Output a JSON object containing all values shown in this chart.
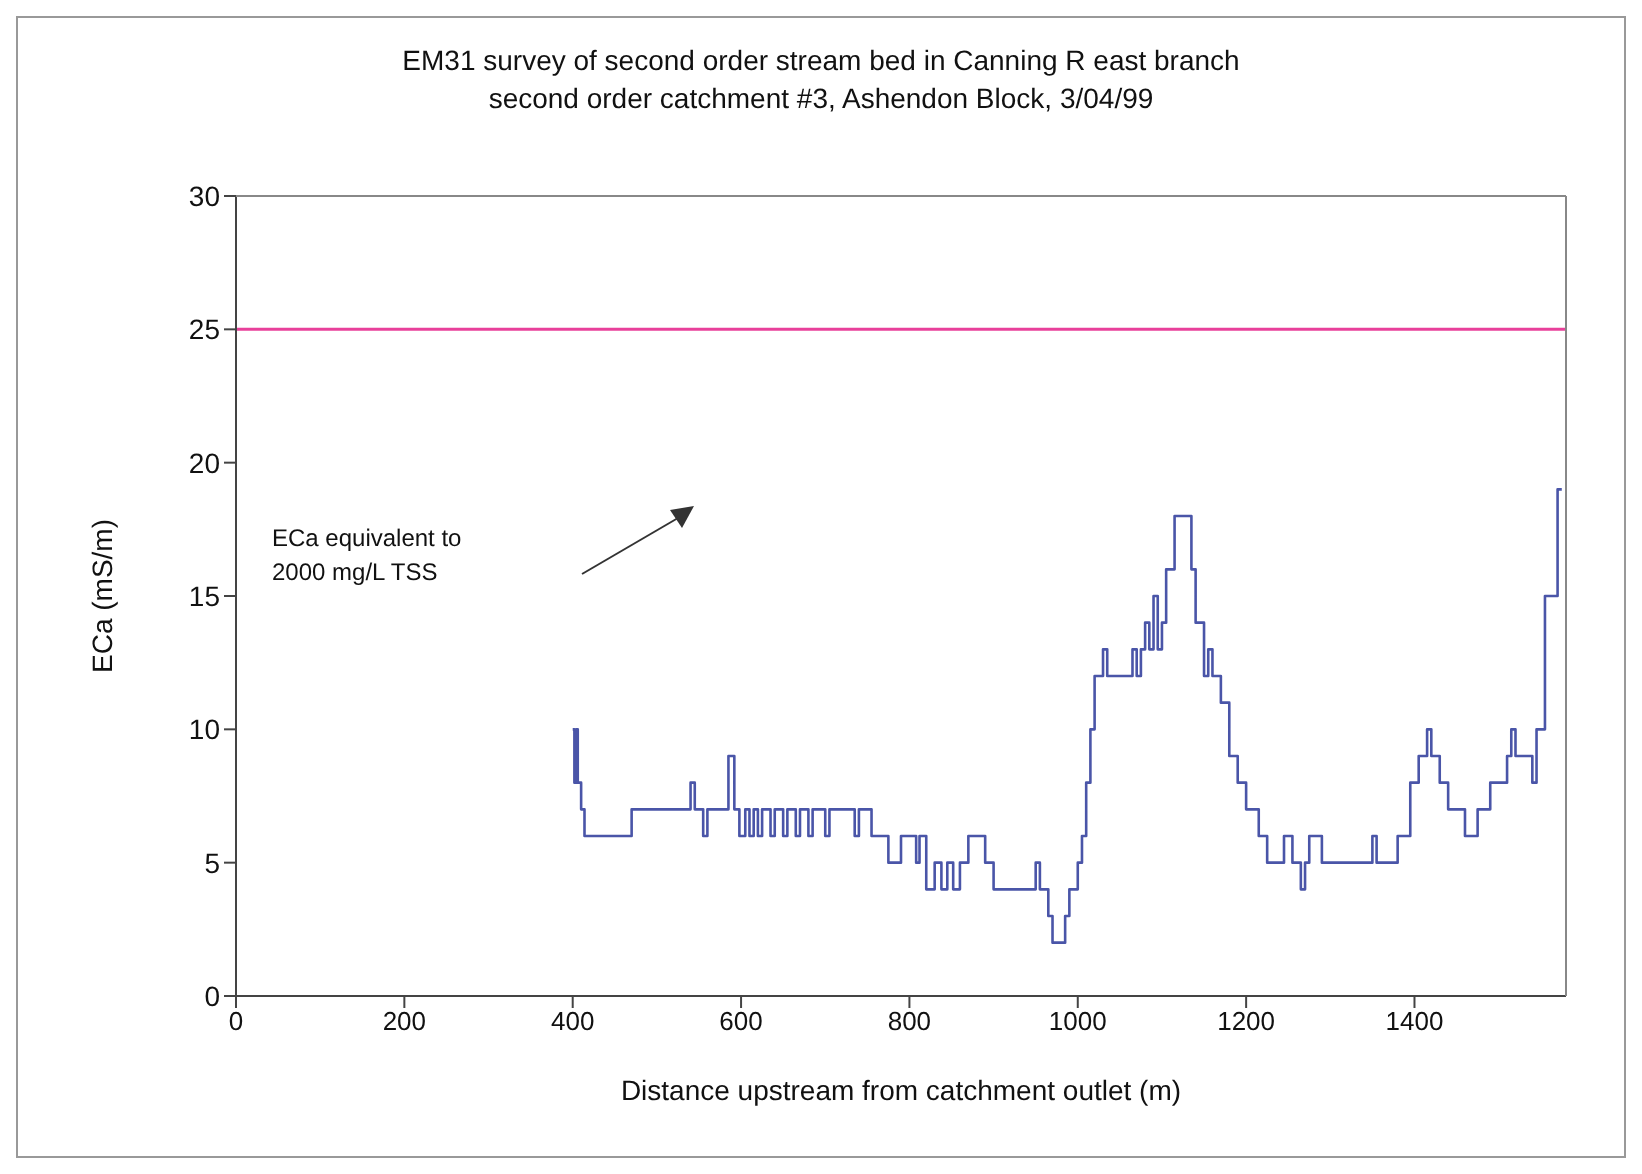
{
  "chart_data": {
    "type": "step",
    "title": "EM31 survey of second order stream bed in Canning R east branch\nsecond order catchment #3, Ashendon Block, 3/04/99",
    "xlabel": "Distance upstream from catchment outlet (m)",
    "ylabel": "ECa (mS/m)",
    "x": [
      400,
      402,
      404,
      406,
      410,
      414,
      470,
      540,
      545,
      555,
      560,
      585,
      592,
      598,
      605,
      610,
      615,
      620,
      625,
      635,
      640,
      650,
      655,
      665,
      670,
      680,
      685,
      700,
      705,
      735,
      740,
      755,
      775,
      790,
      808,
      812,
      820,
      830,
      838,
      845,
      852,
      860,
      870,
      890,
      900,
      950,
      955,
      965,
      970,
      985,
      990,
      1000,
      1005,
      1010,
      1015,
      1020,
      1030,
      1035,
      1065,
      1070,
      1075,
      1080,
      1085,
      1090,
      1095,
      1100,
      1105,
      1115,
      1135,
      1140,
      1150,
      1155,
      1160,
      1170,
      1180,
      1190,
      1200,
      1215,
      1225,
      1245,
      1255,
      1265,
      1270,
      1275,
      1290,
      1350,
      1355,
      1380,
      1395,
      1405,
      1415,
      1420,
      1430,
      1440,
      1460,
      1475,
      1490,
      1510,
      1515,
      1520,
      1540,
      1545,
      1555,
      1570,
      1575
    ],
    "series": [
      {
        "color": "#4a55a8",
        "values": [
          10,
          8,
          10,
          8,
          7,
          6,
          7,
          8,
          7,
          6,
          7,
          9,
          7,
          6,
          7,
          6,
          7,
          6,
          7,
          6,
          7,
          6,
          7,
          6,
          7,
          6,
          7,
          6,
          7,
          6,
          7,
          6,
          5,
          6,
          5,
          6,
          4,
          5,
          4,
          5,
          4,
          5,
          6,
          5,
          4,
          5,
          4,
          3,
          2,
          3,
          4,
          5,
          6,
          8,
          10,
          12,
          13,
          12,
          13,
          12,
          13,
          14,
          13,
          15,
          13,
          14,
          16,
          18,
          16,
          14,
          12,
          13,
          12,
          11,
          9,
          8,
          7,
          6,
          5,
          6,
          5,
          4,
          5,
          6,
          5,
          6,
          5,
          6,
          8,
          9,
          10,
          9,
          8,
          7,
          6,
          7,
          8,
          9,
          10,
          9,
          8,
          10,
          15,
          19,
          19
        ]
      }
    ],
    "xlim": [
      0,
      1580
    ],
    "xticks": [
      0,
      200,
      400,
      600,
      800,
      1000,
      1200,
      1400
    ],
    "ylim": [
      0,
      30
    ],
    "yticks": [
      0,
      5,
      10,
      15,
      20,
      25,
      30
    ],
    "line_style": "solid",
    "marker": "none",
    "ref_lines": [
      {
        "axis": "y",
        "value": 25,
        "color": "#e8409a",
        "line_style": "solid"
      }
    ],
    "annotations": [
      "ECa equivalent to\n2000 mg/L TSS"
    ]
  }
}
